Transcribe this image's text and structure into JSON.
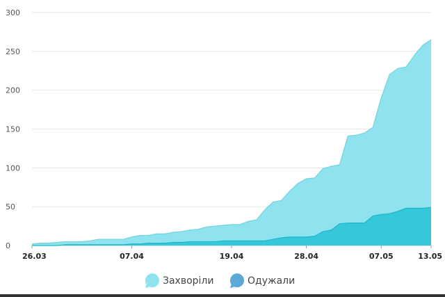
{
  "chart_data": {
    "type": "area",
    "title": "",
    "xlabel": "",
    "ylabel": "",
    "x": [
      "26.03",
      "27.03",
      "28.03",
      "29.03",
      "30.03",
      "31.03",
      "01.04",
      "02.04",
      "03.04",
      "04.04",
      "05.04",
      "06.04",
      "07.04",
      "08.04",
      "09.04",
      "10.04",
      "11.04",
      "12.04",
      "13.04",
      "14.04",
      "15.04",
      "16.04",
      "17.04",
      "18.04",
      "19.04",
      "20.04",
      "21.04",
      "22.04",
      "23.04",
      "24.04",
      "25.04",
      "26.04",
      "27.04",
      "28.04",
      "29.04",
      "30.04",
      "01.05",
      "02.05",
      "03.05",
      "04.05",
      "05.05",
      "06.05",
      "07.05",
      "08.05",
      "09.05",
      "10.05",
      "11.05",
      "12.05",
      "13.05"
    ],
    "x_tick_labels": [
      "26.03",
      "07.04",
      "19.04",
      "28.04",
      "07.05",
      "13.05"
    ],
    "ylim": [
      0,
      300
    ],
    "y_ticks": [
      0,
      50,
      100,
      150,
      200,
      250,
      300
    ],
    "grid": "horizontal",
    "legend_position": "bottom",
    "series": [
      {
        "name": "Захворіли",
        "color": "#8fe3ee",
        "values": [
          2,
          3,
          3,
          4,
          5,
          5,
          5,
          6,
          8,
          8,
          8,
          8,
          11,
          13,
          13,
          15,
          15,
          17,
          18,
          20,
          21,
          24,
          25,
          26,
          27,
          27,
          31,
          33,
          46,
          56,
          58,
          70,
          80,
          86,
          87,
          99,
          102,
          104,
          141,
          142,
          145,
          152,
          190,
          220,
          228,
          230,
          245,
          258,
          265
        ]
      },
      {
        "name": "Одужали",
        "color": "#35c8da",
        "values": [
          0,
          0,
          0,
          0,
          1,
          1,
          1,
          1,
          1,
          1,
          1,
          1,
          2,
          2,
          3,
          3,
          3,
          4,
          4,
          5,
          5,
          5,
          5,
          6,
          6,
          6,
          6,
          6,
          6,
          8,
          10,
          11,
          11,
          11,
          12,
          18,
          20,
          28,
          29,
          29,
          29,
          38,
          40,
          41,
          44,
          48,
          48,
          48,
          49
        ]
      }
    ]
  },
  "icons": {
    "legend_marker_1": "bubble-icon",
    "legend_marker_2": "bubble-icon"
  }
}
